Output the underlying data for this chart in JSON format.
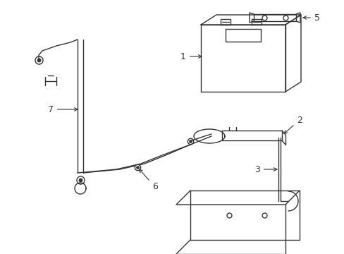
{
  "bg_color": "#ffffff",
  "line_color": "#333333",
  "figsize": [
    4.89,
    3.6
  ],
  "dpi": 100,
  "lw": 1.0
}
